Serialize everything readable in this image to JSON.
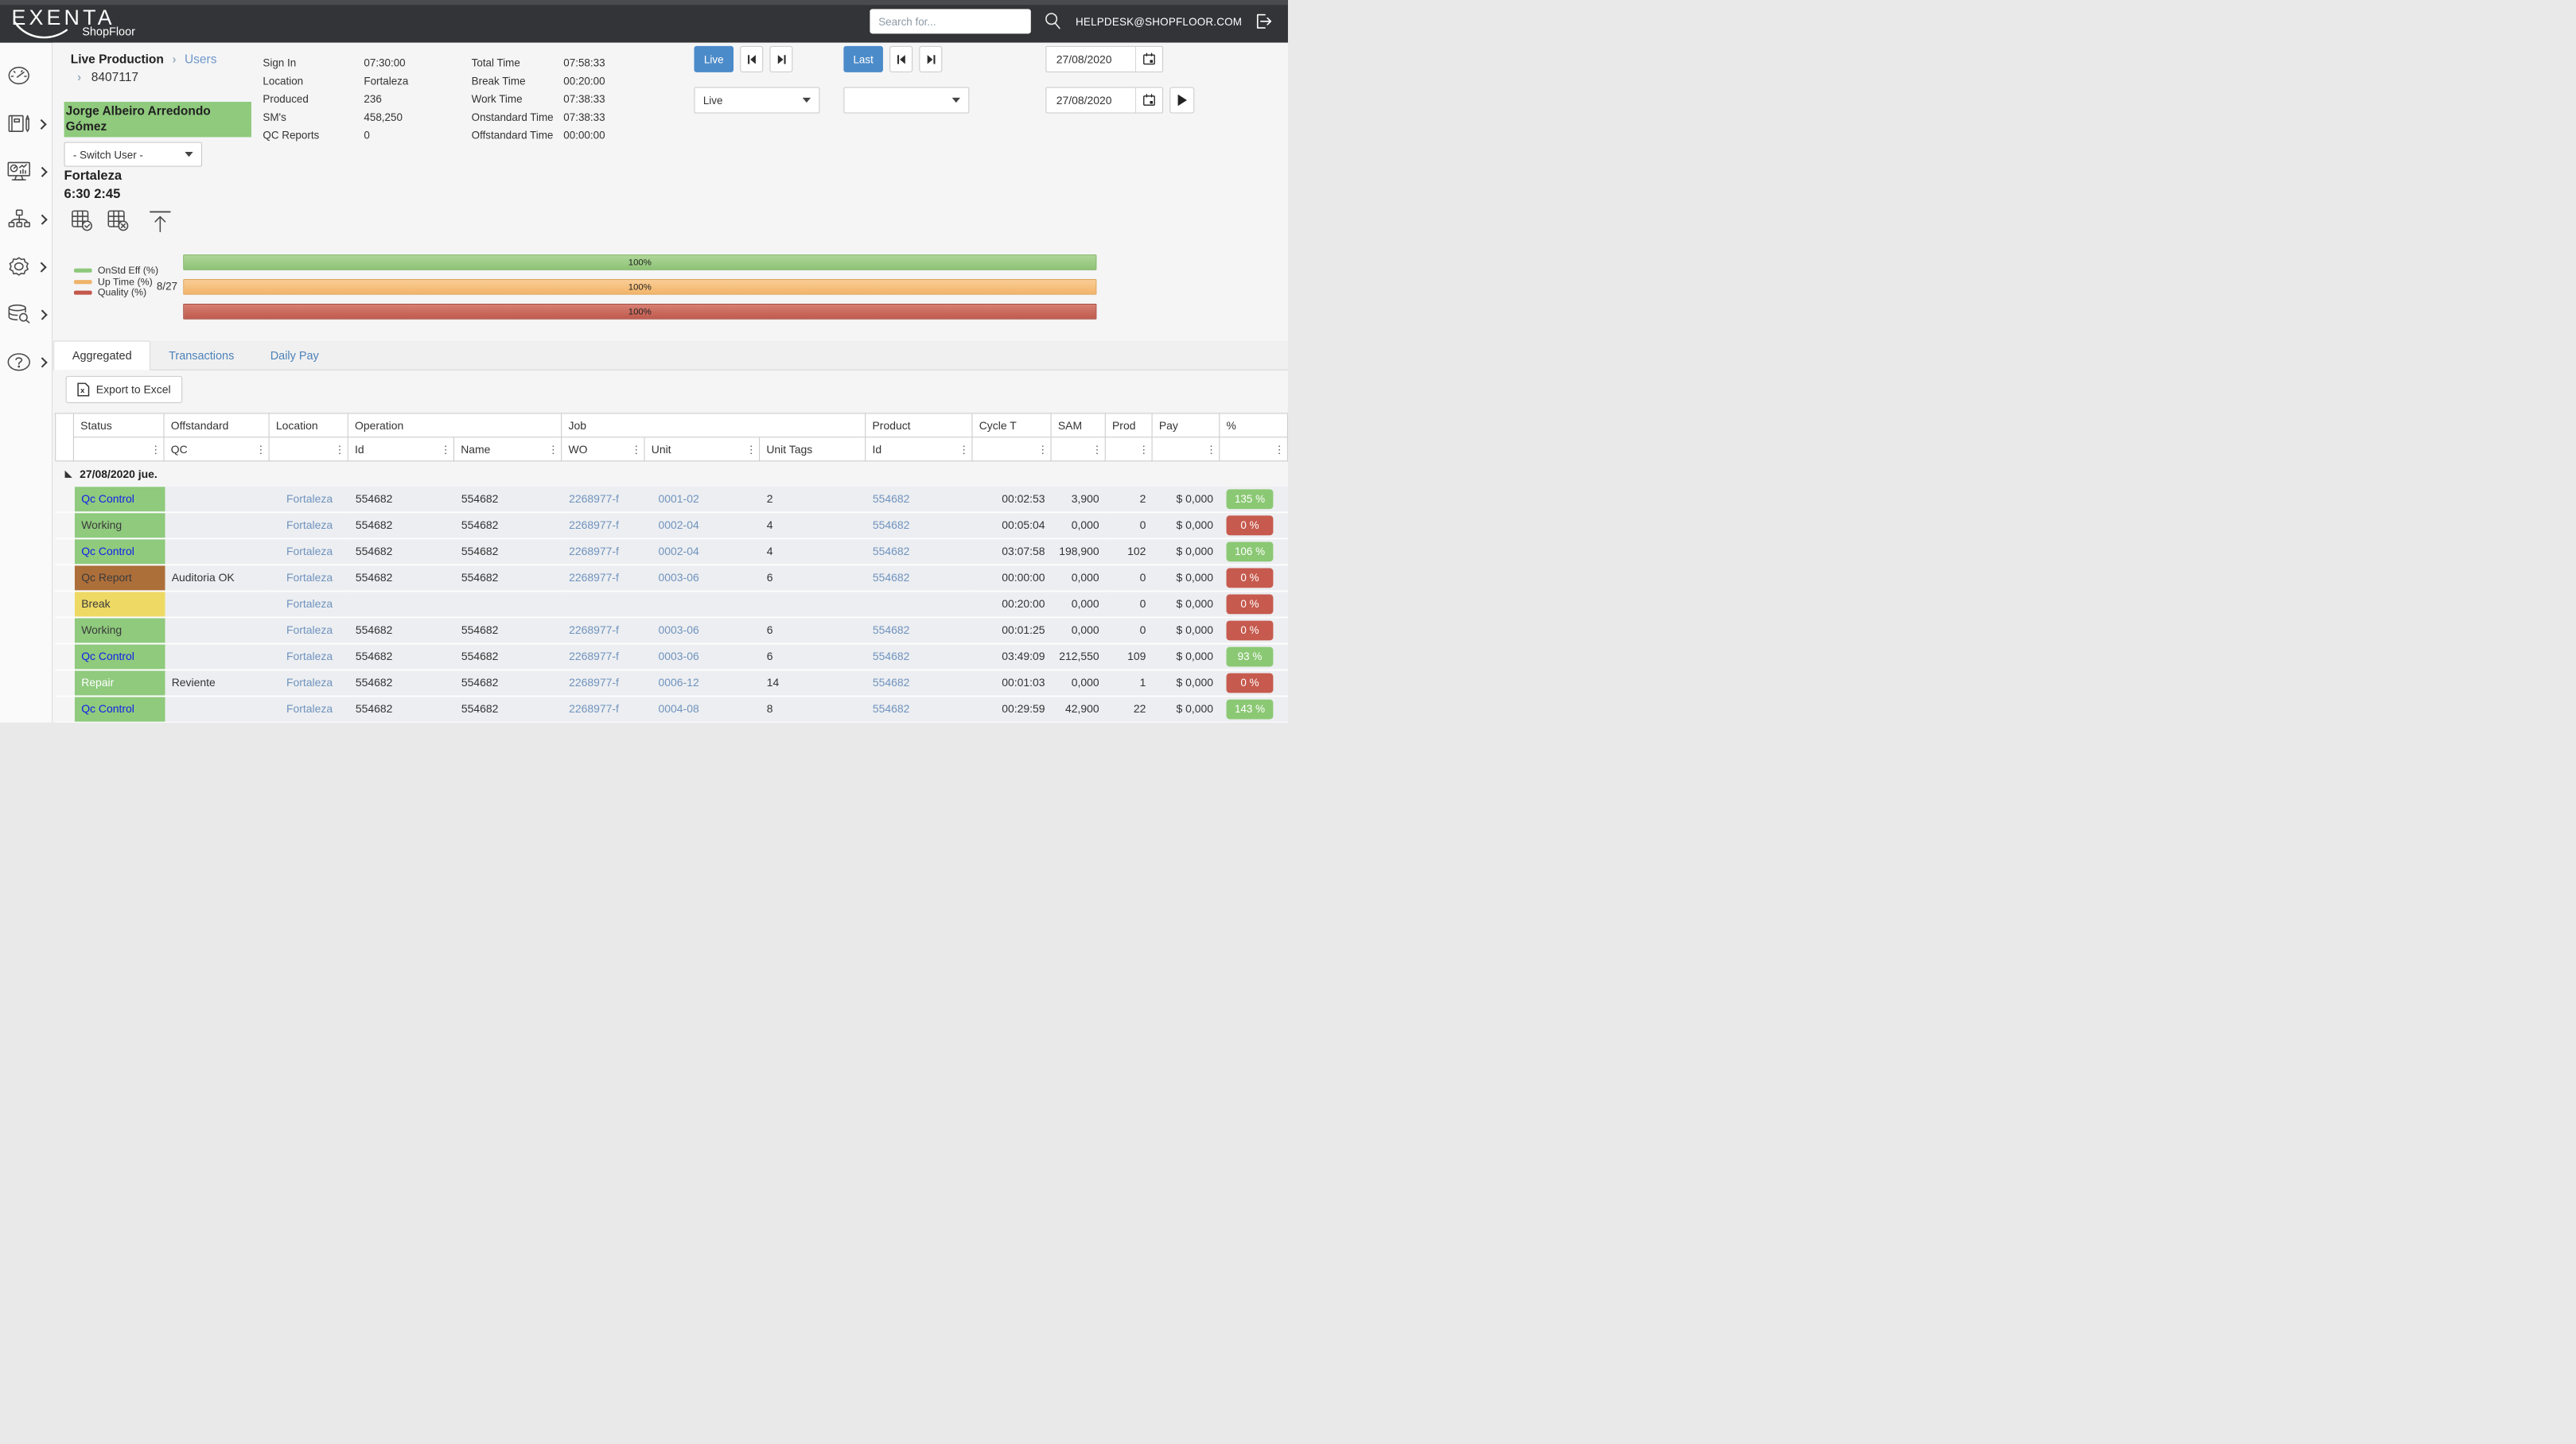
{
  "topbar": {
    "logo_main": "EXENTA",
    "logo_sub": "ShopFloor",
    "search_placeholder": "Search for...",
    "helpdesk": "HELPDESK@SHOPFLOOR.COM"
  },
  "sidebar": {
    "items": [
      {
        "icon": "gauge-icon",
        "chevron": false
      },
      {
        "icon": "notebook-pencil-icon",
        "chevron": true
      },
      {
        "icon": "monitor-analytics-icon",
        "chevron": true
      },
      {
        "icon": "org-chart-icon",
        "chevron": true
      },
      {
        "icon": "gear-icon",
        "chevron": true
      },
      {
        "icon": "database-search-icon",
        "chevron": true
      },
      {
        "icon": "help-icon",
        "chevron": true
      }
    ]
  },
  "header": {
    "breadcrumb": [
      "Live Production",
      "Users",
      "8407117"
    ],
    "user_name": "Jorge Albeiro Arredondo Gómez",
    "switch_user_label": "- Switch User -",
    "stats_left": [
      {
        "label": "Sign In",
        "value": "07:30:00"
      },
      {
        "label": "Location",
        "value": "Fortaleza"
      },
      {
        "label": "Produced",
        "value": "236"
      },
      {
        "label": "SM's",
        "value": "458,250"
      },
      {
        "label": "QC Reports",
        "value": "0"
      }
    ],
    "stats_right": [
      {
        "label": "Total Time",
        "value": "07:58:33"
      },
      {
        "label": "Break Time",
        "value": "00:20:00"
      },
      {
        "label": "Work Time",
        "value": "07:38:33"
      },
      {
        "label": "Onstandard Time",
        "value": "07:38:33"
      },
      {
        "label": "Offstandard Time",
        "value": "00:00:00"
      }
    ]
  },
  "controls": {
    "live_label": "Live",
    "last_label": "Last",
    "date_from": "27/08/2020",
    "date_to": "27/08/2020",
    "view_select_value": "Live",
    "filter_select_value": "",
    "icons": [
      "skip-start-icon",
      "skip-end-icon",
      "calendar-icon",
      "play-icon"
    ]
  },
  "location_panel": {
    "title": "Fortaleza",
    "times": "6:30 2:45",
    "icons": [
      "table-check-icon",
      "table-x-icon",
      "upload-icon"
    ]
  },
  "chart_data": {
    "type": "bar",
    "orientation": "horizontal",
    "categories": [
      "8/27"
    ],
    "series": [
      {
        "name": "OnStd Eff (%)",
        "values": [
          100
        ],
        "color": "#8dc87a"
      },
      {
        "name": "Up Time (%)",
        "values": [
          100
        ],
        "color": "#f0b36b"
      },
      {
        "name": "Quality (%)",
        "values": [
          100
        ],
        "color": "#c4574b"
      }
    ],
    "bar_labels": [
      "100%",
      "100%",
      "100%"
    ],
    "xlim": [
      0,
      100
    ],
    "legend_position": "left",
    "grid": false
  },
  "tabs": {
    "items": [
      "Aggregated",
      "Transactions",
      "Daily Pay"
    ],
    "active": 0
  },
  "export": {
    "label": "Export to Excel",
    "icon": "excel-file-icon"
  },
  "table": {
    "columns": [
      {
        "label": "Status",
        "sub": [
          ""
        ]
      },
      {
        "label": "Offstandard",
        "sub": [
          "QC"
        ]
      },
      {
        "label": "Location",
        "sub": [
          ""
        ]
      },
      {
        "label": "Operation",
        "sub": [
          "Id",
          "Name"
        ]
      },
      {
        "label": "Job",
        "sub": [
          "WO",
          "Unit",
          "Unit Tags"
        ]
      },
      {
        "label": "Product",
        "sub": [
          "Id"
        ]
      },
      {
        "label": "Cycle T",
        "sub": [
          ""
        ]
      },
      {
        "label": "SAM",
        "sub": [
          ""
        ]
      },
      {
        "label": "Prod",
        "sub": [
          ""
        ]
      },
      {
        "label": "Pay",
        "sub": [
          ""
        ]
      },
      {
        "label": "%",
        "sub": [
          ""
        ]
      }
    ],
    "group_row": "27/08/2020 jue.",
    "rows": [
      {
        "status": "Qc Control",
        "status_bg": "green",
        "status_fg": "blue",
        "offstandard": "",
        "location": "Fortaleza",
        "op_id": "554682",
        "op_name": "554682",
        "wo": "2268977-f",
        "unit": "0001-02",
        "unit_tags": "2",
        "product_id": "554682",
        "cycle_t": "00:02:53",
        "sam": "3,900",
        "prod": "2",
        "pay": "$ 0,000",
        "pct": "135 %",
        "pct_bg": "green"
      },
      {
        "status": "Working",
        "status_bg": "green",
        "status_fg": "dark",
        "offstandard": "",
        "location": "Fortaleza",
        "op_id": "554682",
        "op_name": "554682",
        "wo": "2268977-f",
        "unit": "0002-04",
        "unit_tags": "4",
        "product_id": "554682",
        "cycle_t": "00:05:04",
        "sam": "0,000",
        "prod": "0",
        "pay": "$ 0,000",
        "pct": "0 %",
        "pct_bg": "red"
      },
      {
        "status": "Qc Control",
        "status_bg": "green",
        "status_fg": "blue",
        "offstandard": "",
        "location": "Fortaleza",
        "op_id": "554682",
        "op_name": "554682",
        "wo": "2268977-f",
        "unit": "0002-04",
        "unit_tags": "4",
        "product_id": "554682",
        "cycle_t": "03:07:58",
        "sam": "198,900",
        "prod": "102",
        "pay": "$ 0,000",
        "pct": "106 %",
        "pct_bg": "green"
      },
      {
        "status": "Qc Report",
        "status_bg": "brown",
        "status_fg": "dark",
        "offstandard": "Auditoria OK",
        "location": "Fortaleza",
        "op_id": "554682",
        "op_name": "554682",
        "wo": "2268977-f",
        "unit": "0003-06",
        "unit_tags": "6",
        "product_id": "554682",
        "cycle_t": "00:00:00",
        "sam": "0,000",
        "prod": "0",
        "pay": "$ 0,000",
        "pct": "0 %",
        "pct_bg": "red"
      },
      {
        "status": "Break",
        "status_bg": "yellow",
        "status_fg": "dark",
        "offstandard": "",
        "location": "Fortaleza",
        "op_id": "",
        "op_name": "",
        "wo": "",
        "unit": "",
        "unit_tags": "",
        "product_id": "",
        "cycle_t": "00:20:00",
        "sam": "0,000",
        "prod": "0",
        "pay": "$ 0,000",
        "pct": "0 %",
        "pct_bg": "red"
      },
      {
        "status": "Working",
        "status_bg": "green",
        "status_fg": "dark",
        "offstandard": "",
        "location": "Fortaleza",
        "op_id": "554682",
        "op_name": "554682",
        "wo": "2268977-f",
        "unit": "0003-06",
        "unit_tags": "6",
        "product_id": "554682",
        "cycle_t": "00:01:25",
        "sam": "0,000",
        "prod": "0",
        "pay": "$ 0,000",
        "pct": "0 %",
        "pct_bg": "red"
      },
      {
        "status": "Qc Control",
        "status_bg": "green",
        "status_fg": "blue",
        "offstandard": "",
        "location": "Fortaleza",
        "op_id": "554682",
        "op_name": "554682",
        "wo": "2268977-f",
        "unit": "0003-06",
        "unit_tags": "6",
        "product_id": "554682",
        "cycle_t": "03:49:09",
        "sam": "212,550",
        "prod": "109",
        "pay": "$ 0,000",
        "pct": "93 %",
        "pct_bg": "green"
      },
      {
        "status": "Repair",
        "status_bg": "green",
        "status_fg": "white",
        "offstandard": "Reviente",
        "location": "Fortaleza",
        "op_id": "554682",
        "op_name": "554682",
        "wo": "2268977-f",
        "unit": "0006-12",
        "unit_tags": "14",
        "product_id": "554682",
        "cycle_t": "00:01:03",
        "sam": "0,000",
        "prod": "1",
        "pay": "$ 0,000",
        "pct": "0 %",
        "pct_bg": "red"
      },
      {
        "status": "Qc Control",
        "status_bg": "green",
        "status_fg": "blue",
        "offstandard": "",
        "location": "Fortaleza",
        "op_id": "554682",
        "op_name": "554682",
        "wo": "2268977-f",
        "unit": "0004-08",
        "unit_tags": "8",
        "product_id": "554682",
        "cycle_t": "00:29:59",
        "sam": "42,900",
        "prod": "22",
        "pay": "$ 0,000",
        "pct": "143 %",
        "pct_bg": "green"
      }
    ]
  },
  "theme": {
    "accent_blue": "#4c8bc9",
    "link_blue": "#7093be",
    "status_link_blue": "#1220e8",
    "green_cell": "#8fca7d",
    "brown_cell": "#ad6f3a",
    "yellow_cell": "#eed964",
    "badge_green": "#8bc874",
    "badge_red": "#c65a4e",
    "topbar_bg": "#333437"
  }
}
